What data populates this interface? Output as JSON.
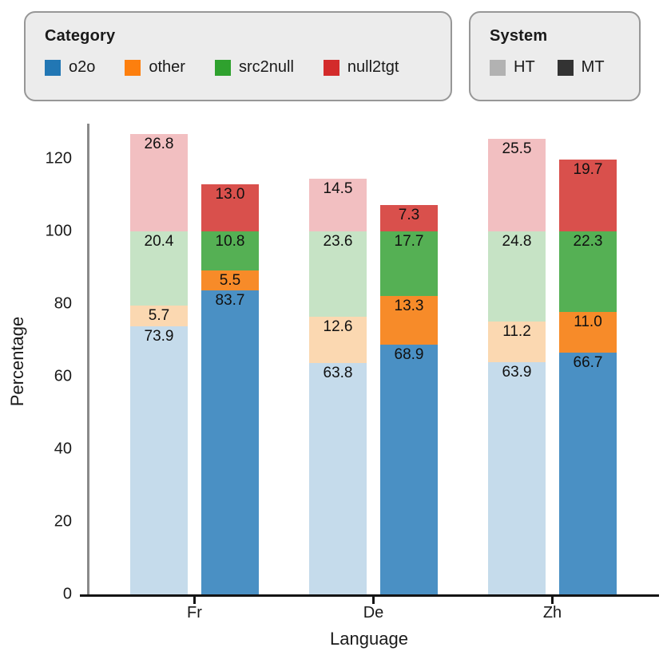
{
  "colors": {
    "legend_swatches": {
      "o2o": "#2277b4",
      "other": "#fd7f0e",
      "src2null": "#2fa12e",
      "null2tgt": "#d32b2b",
      "ht": "#b2b2b2",
      "mt": "#333333"
    },
    "bar_fill": {
      "HT": {
        "o2o": "#c5dbeb",
        "other": "#fbd8b1",
        "src2null": "#c6e3c5",
        "null2tgt": "#f2bfc1"
      },
      "MT": {
        "o2o": "#4a90c4",
        "other": "#f78b29",
        "src2null": "#55b054",
        "null2tgt": "#d9504c"
      }
    },
    "left_spine": "#8a8a8a",
    "bottom_spine": "#141414",
    "legend_box_bg": "#ececec",
    "legend_box_border": "#979797"
  },
  "legend_category": {
    "title": "Category",
    "items": [
      {
        "key": "o2o",
        "label": "o2o"
      },
      {
        "key": "other",
        "label": "other"
      },
      {
        "key": "src2null",
        "label": "src2null"
      },
      {
        "key": "null2tgt",
        "label": "null2tgt"
      }
    ]
  },
  "legend_system": {
    "title": "System",
    "items": [
      {
        "key": "ht",
        "label": "HT"
      },
      {
        "key": "mt",
        "label": "MT"
      }
    ]
  },
  "chart_data": {
    "type": "bar",
    "stacked": true,
    "title": "",
    "xlabel": "Language",
    "ylabel": "Percentage",
    "categories": [
      "Fr",
      "De",
      "Zh"
    ],
    "systems": [
      "HT",
      "MT"
    ],
    "stack_order": [
      "o2o",
      "other",
      "src2null",
      "null2tgt"
    ],
    "yticks": [
      0,
      20,
      40,
      60,
      80,
      100,
      120
    ],
    "ylim": [
      0,
      130
    ],
    "grid": false,
    "legend_position": "top",
    "series": [
      {
        "language": "Fr",
        "system": "HT",
        "values": {
          "o2o": 73.9,
          "other": 5.7,
          "src2null": 20.4,
          "null2tgt": 26.8
        }
      },
      {
        "language": "Fr",
        "system": "MT",
        "values": {
          "o2o": 83.7,
          "other": 5.5,
          "src2null": 10.8,
          "null2tgt": 13.0
        }
      },
      {
        "language": "De",
        "system": "HT",
        "values": {
          "o2o": 63.8,
          "other": 12.6,
          "src2null": 23.6,
          "null2tgt": 14.5
        }
      },
      {
        "language": "De",
        "system": "MT",
        "values": {
          "o2o": 68.9,
          "other": 13.3,
          "src2null": 17.7,
          "null2tgt": 7.3
        }
      },
      {
        "language": "Zh",
        "system": "HT",
        "values": {
          "o2o": 63.9,
          "other": 11.2,
          "src2null": 24.8,
          "null2tgt": 25.5
        }
      },
      {
        "language": "Zh",
        "system": "MT",
        "values": {
          "o2o": 66.7,
          "other": 11.0,
          "src2null": 22.3,
          "null2tgt": 19.7
        }
      }
    ]
  }
}
